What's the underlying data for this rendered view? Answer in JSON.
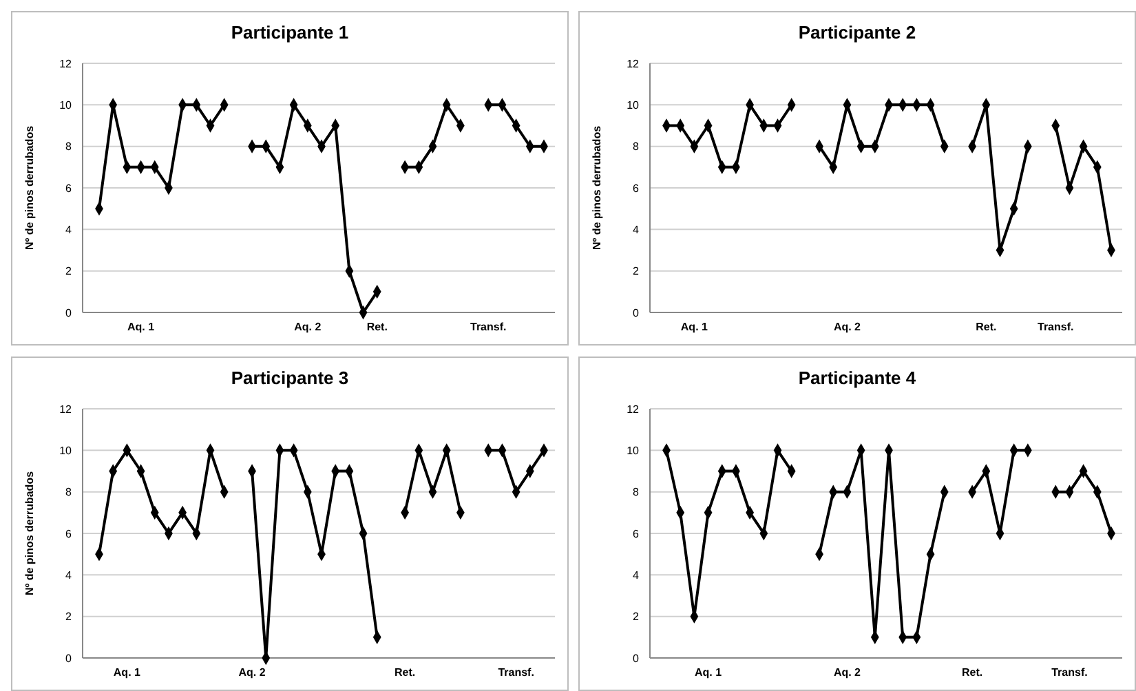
{
  "chart_data": [
    {
      "type": "line",
      "title": "Participante 1",
      "ylabel": "Nº de pinos derrubados",
      "categories": [
        null,
        null,
        null,
        "Aq. 1",
        null,
        null,
        null,
        null,
        null,
        null,
        null,
        null,
        null,
        null,
        null,
        "Aq. 2",
        null,
        null,
        null,
        null,
        "Ret.",
        null,
        null,
        null,
        null,
        null,
        null,
        null,
        "Transf.",
        null,
        null,
        null,
        null
      ],
      "series": [
        {
          "color": "#000000",
          "values": [
            5,
            10,
            7,
            7,
            7,
            6,
            10,
            10,
            9,
            10,
            null,
            8,
            8,
            7,
            10,
            9,
            8,
            9,
            2,
            0,
            1,
            null,
            7,
            7,
            8,
            10,
            9,
            null,
            10,
            10,
            9,
            8,
            8
          ]
        }
      ],
      "ylim": [
        0,
        12
      ],
      "yticks": [
        0,
        2,
        4,
        6,
        8,
        10,
        12
      ],
      "grid": "y",
      "marker": "diamond",
      "line_style": "solid"
    },
    {
      "type": "line",
      "title": "Participante 2",
      "ylabel": "Nº de pinos derrubados",
      "categories": [
        null,
        null,
        "Aq. 1",
        null,
        null,
        null,
        null,
        null,
        null,
        null,
        null,
        null,
        null,
        "Aq. 2",
        null,
        null,
        null,
        null,
        null,
        null,
        null,
        null,
        null,
        "Ret.",
        null,
        null,
        null,
        null,
        "Transf.",
        null,
        null,
        null,
        null
      ],
      "series": [
        {
          "color": "#000000",
          "values": [
            9,
            9,
            8,
            9,
            7,
            7,
            10,
            9,
            9,
            10,
            null,
            8,
            7,
            10,
            8,
            8,
            10,
            10,
            10,
            10,
            8,
            null,
            8,
            10,
            3,
            5,
            8,
            null,
            9,
            6,
            8,
            7,
            3
          ]
        }
      ],
      "ylim": [
        0,
        12
      ],
      "yticks": [
        0,
        2,
        4,
        6,
        8,
        10,
        12
      ],
      "grid": "y",
      "marker": "diamond",
      "line_style": "solid"
    },
    {
      "type": "line",
      "title": "Participante 3",
      "ylabel": "Nº de pinos derrubados",
      "categories": [
        null,
        null,
        "Aq. 1",
        null,
        null,
        null,
        null,
        null,
        null,
        null,
        null,
        "Aq. 2",
        null,
        null,
        null,
        null,
        null,
        null,
        null,
        null,
        null,
        null,
        "Ret.",
        null,
        null,
        null,
        null,
        null,
        null,
        null,
        "Transf.",
        null,
        null
      ],
      "series": [
        {
          "color": "#000000",
          "values": [
            5,
            9,
            10,
            9,
            7,
            6,
            7,
            6,
            10,
            8,
            null,
            9,
            0,
            10,
            10,
            8,
            5,
            9,
            9,
            6,
            1,
            null,
            7,
            10,
            8,
            10,
            7,
            null,
            10,
            10,
            8,
            9,
            10
          ]
        }
      ],
      "ylim": [
        0,
        12
      ],
      "yticks": [
        0,
        2,
        4,
        6,
        8,
        10,
        12
      ],
      "grid": "y",
      "marker": "diamond",
      "line_style": "solid"
    },
    {
      "type": "line",
      "title": "Participante 4",
      "categories": [
        null,
        null,
        null,
        "Aq. 1",
        null,
        null,
        null,
        null,
        null,
        null,
        null,
        null,
        null,
        "Aq. 2",
        null,
        null,
        null,
        null,
        null,
        null,
        null,
        null,
        "Ret.",
        null,
        null,
        null,
        null,
        null,
        null,
        "Transf.",
        null,
        null,
        null
      ],
      "series": [
        {
          "color": "#000000",
          "values": [
            10,
            7,
            2,
            7,
            9,
            9,
            7,
            6,
            10,
            9,
            null,
            5,
            8,
            8,
            10,
            1,
            10,
            1,
            1,
            5,
            8,
            null,
            8,
            9,
            6,
            10,
            10,
            null,
            8,
            8,
            9,
            8,
            6
          ]
        }
      ],
      "ylim": [
        0,
        12
      ],
      "yticks": [
        0,
        2,
        4,
        6,
        8,
        10,
        12
      ],
      "grid": "y",
      "marker": "diamond",
      "line_style": "solid"
    }
  ]
}
